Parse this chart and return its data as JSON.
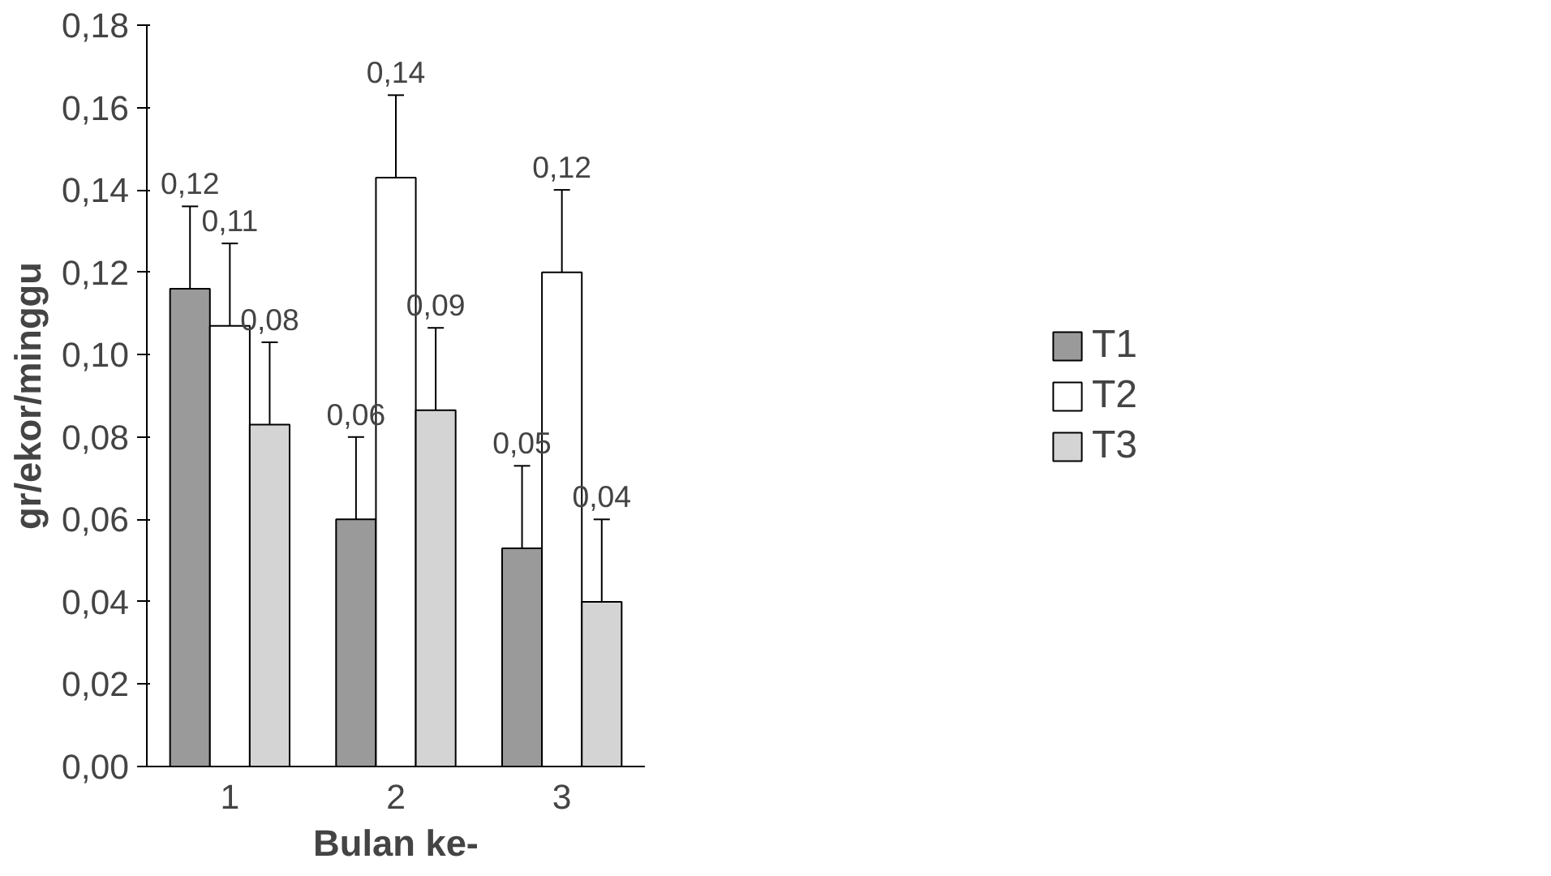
{
  "chart_data": {
    "type": "bar",
    "xlabel": "Bulan ke-",
    "ylabel": "gr/ekor/minggu",
    "categories": [
      "1",
      "2",
      "3"
    ],
    "series": [
      {
        "name": "T1",
        "color": "#9a9a9a",
        "values": [
          0.116,
          0.06,
          0.053
        ],
        "errors": [
          0.02,
          0.02,
          0.02
        ],
        "value_labels": [
          "0,12",
          "0,06",
          "0,05"
        ]
      },
      {
        "name": "T2",
        "color": "#ffffff",
        "values": [
          0.107,
          0.143,
          0.12
        ],
        "errors": [
          0.02,
          0.02,
          0.02
        ],
        "value_labels": [
          "0,11",
          "0,14",
          "0,12"
        ]
      },
      {
        "name": "T3",
        "color": "#d4d4d4",
        "values": [
          0.083,
          0.0865,
          0.04
        ],
        "errors": [
          0.02,
          0.02,
          0.02
        ],
        "value_labels": [
          "0,08",
          "0,09",
          "0,04"
        ]
      }
    ],
    "ylim": [
      0,
      0.18
    ],
    "yticks": [
      {
        "value": 0,
        "label": "0,00"
      },
      {
        "value": 0.02,
        "label": "0,02"
      },
      {
        "value": 0.04,
        "label": "0,04"
      },
      {
        "value": 0.06,
        "label": "0,06"
      },
      {
        "value": 0.08,
        "label": "0,08"
      },
      {
        "value": 0.1,
        "label": "0,10"
      },
      {
        "value": 0.12,
        "label": "0,12"
      },
      {
        "value": 0.14,
        "label": "0,14"
      },
      {
        "value": 0.16,
        "label": "0,16"
      },
      {
        "value": 0.18,
        "label": "0,18"
      }
    ],
    "grid": false,
    "legend": "right"
  }
}
